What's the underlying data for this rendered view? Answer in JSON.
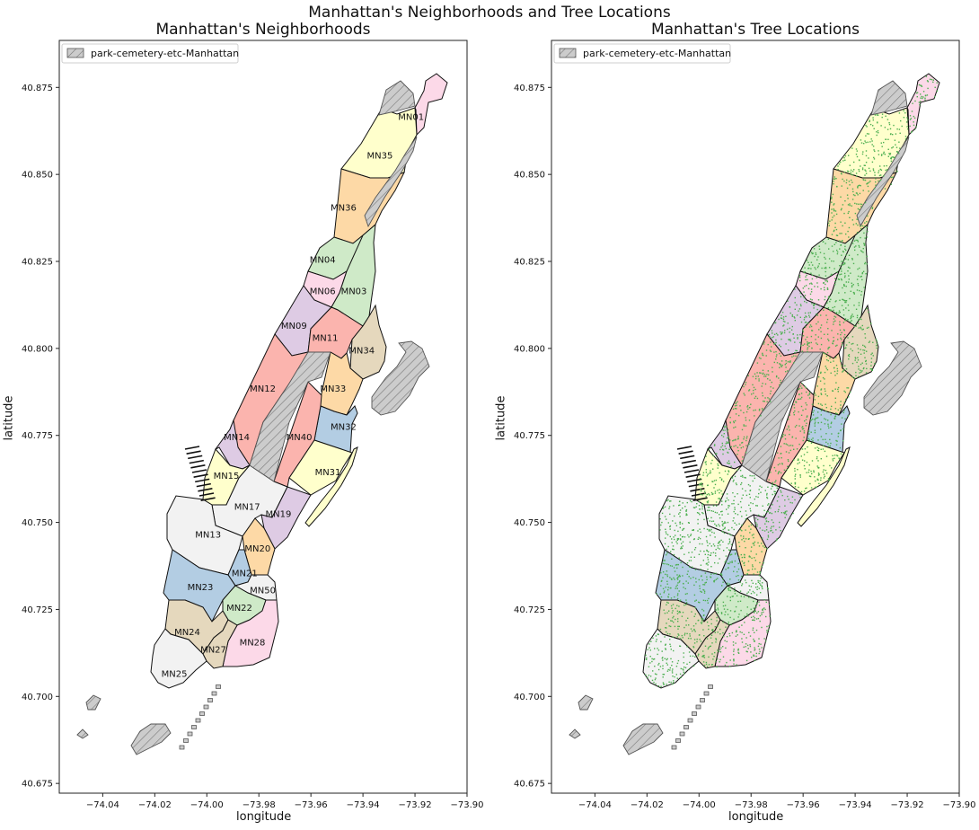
{
  "suptitle": "Manhattan's Neighborhoods and Tree Locations",
  "panels": [
    {
      "title": "Manhattan's Neighborhoods",
      "show_trees": false
    },
    {
      "title": "Manhattan's Tree Locations",
      "show_trees": true
    }
  ],
  "xlabel": "longitude",
  "ylabel": "latitude",
  "xticks": [
    "-74.04",
    "-74.02",
    "-74.00",
    "-73.98",
    "-73.96",
    "-73.94",
    "-73.92",
    "-73.90"
  ],
  "yticks": [
    "40.875",
    "40.850",
    "40.825",
    "40.800",
    "40.775",
    "40.750",
    "40.725",
    "40.700",
    "40.675"
  ],
  "legend_label": "park-cemetery-etc-Manhattan",
  "colors": {
    "park_fill": "#cccccc",
    "tree_dot": "#4caf50",
    "outline": "#111111"
  },
  "neighborhoods": [
    {
      "code": "MN01",
      "color": "#fcd9e8",
      "label_lon": -73.9215,
      "label_lat": 40.8665
    },
    {
      "code": "MN35",
      "color": "#ffffcc",
      "label_lon": -73.9335,
      "label_lat": 40.8555
    },
    {
      "code": "MN36",
      "color": "#fdd9a6",
      "label_lon": -73.9475,
      "label_lat": 40.8405
    },
    {
      "code": "MN04",
      "color": "#cfeac8",
      "label_lon": -73.9555,
      "label_lat": 40.8255
    },
    {
      "code": "MN06",
      "color": "#fcd9e8",
      "label_lon": -73.9555,
      "label_lat": 40.8165
    },
    {
      "code": "MN03",
      "color": "#cfeac8",
      "label_lon": -73.9435,
      "label_lat": 40.8165
    },
    {
      "code": "MN09",
      "color": "#decbe4",
      "label_lon": -73.9665,
      "label_lat": 40.8065
    },
    {
      "code": "MN11",
      "color": "#fbb4ae",
      "label_lon": -73.9545,
      "label_lat": 40.803
    },
    {
      "code": "MN34",
      "color": "#e5d8bd",
      "label_lon": -73.9405,
      "label_lat": 40.7995
    },
    {
      "code": "MN12",
      "color": "#fbb4ae",
      "label_lon": -73.9785,
      "label_lat": 40.7885
    },
    {
      "code": "MN33",
      "color": "#fdd9a6",
      "label_lon": -73.9515,
      "label_lat": 40.7885
    },
    {
      "code": "MN32",
      "color": "#b3cde3",
      "label_lon": -73.9475,
      "label_lat": 40.7775
    },
    {
      "code": "MN14",
      "color": "#decbe4",
      "label_lon": -73.9885,
      "label_lat": 40.7745
    },
    {
      "code": "MN40",
      "color": "#fbb4ae",
      "label_lon": -73.9645,
      "label_lat": 40.7745
    },
    {
      "code": "MN31",
      "color": "#ffffcc",
      "label_lon": -73.9535,
      "label_lat": 40.7645
    },
    {
      "code": "MN15",
      "color": "#ffffcc",
      "label_lon": -73.9925,
      "label_lat": 40.7635
    },
    {
      "code": "MN17",
      "color": "#f2f2f2",
      "label_lon": -73.9845,
      "label_lat": 40.7545
    },
    {
      "code": "MN19",
      "color": "#decbe4",
      "label_lon": -73.9725,
      "label_lat": 40.7525
    },
    {
      "code": "MN13",
      "color": "#f2f2f2",
      "label_lon": -73.9995,
      "label_lat": 40.7465
    },
    {
      "code": "MN20",
      "color": "#fdd9a6",
      "label_lon": -73.9805,
      "label_lat": 40.7425
    },
    {
      "code": "MN21",
      "color": "#b3cde3",
      "label_lon": -73.9855,
      "label_lat": 40.7355
    },
    {
      "code": "MN23",
      "color": "#b3cde3",
      "label_lon": -74.0025,
      "label_lat": 40.7315
    },
    {
      "code": "MN50",
      "color": "#f2f2f2",
      "label_lon": -73.9785,
      "label_lat": 40.7305
    },
    {
      "code": "MN22",
      "color": "#cfeac8",
      "label_lon": -73.9875,
      "label_lat": 40.7255
    },
    {
      "code": "MN24",
      "color": "#e5d8bd",
      "label_lon": -74.0075,
      "label_lat": 40.7185
    },
    {
      "code": "MN28",
      "color": "#fcd9e8",
      "label_lon": -73.9825,
      "label_lat": 40.7155
    },
    {
      "code": "MN27",
      "color": "#e5d8bd",
      "label_lon": -73.9975,
      "label_lat": 40.7135
    },
    {
      "code": "MN25",
      "color": "#f2f2f2",
      "label_lon": -74.0125,
      "label_lat": 40.7065
    }
  ]
}
